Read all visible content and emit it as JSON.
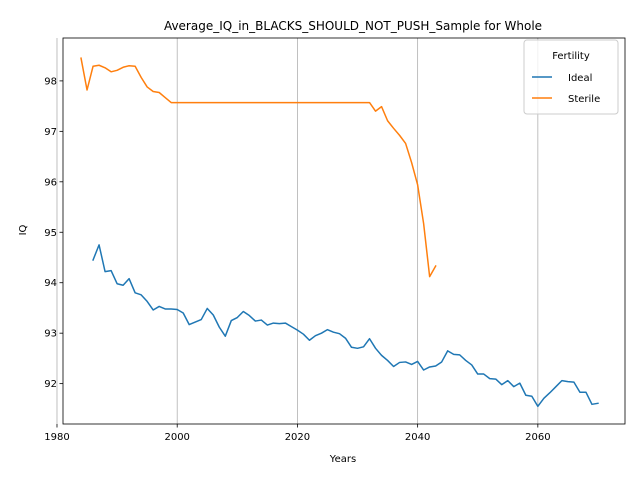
{
  "chart_data": {
    "type": "line",
    "title": "Average_IQ_in_BLACKS_SHOULD_NOT_PUSH_Sample for Whole",
    "xlabel": "Years",
    "ylabel": "IQ",
    "xlim": [
      1981,
      2074.5
    ],
    "ylim": [
      91.2,
      98.85
    ],
    "xticks": [
      1980,
      2000,
      2020,
      2040,
      2060
    ],
    "yticks": [
      92,
      93,
      94,
      95,
      96,
      97,
      98
    ],
    "grid": "x-only",
    "legend": {
      "title": "Fertility",
      "position": "top-right"
    },
    "series": [
      {
        "name": "Ideal",
        "color": "#1f77b4",
        "x": [
          1986,
          1987,
          1988,
          1989,
          1990,
          1991,
          1992,
          1993,
          1994,
          1995,
          1996,
          1997,
          1998,
          1999,
          2000,
          2001,
          2002,
          2003,
          2004,
          2005,
          2006,
          2007,
          2008,
          2009,
          2010,
          2011,
          2012,
          2013,
          2014,
          2015,
          2016,
          2017,
          2018,
          2019,
          2020,
          2021,
          2022,
          2023,
          2024,
          2025,
          2026,
          2027,
          2028,
          2029,
          2030,
          2031,
          2032,
          2033,
          2034,
          2035,
          2036,
          2037,
          2038,
          2039,
          2040,
          2041,
          2042,
          2043,
          2044,
          2045,
          2046,
          2047,
          2048,
          2049,
          2050,
          2051,
          2052,
          2053,
          2054,
          2055,
          2056,
          2057,
          2058,
          2059,
          2060,
          2061,
          2062,
          2063,
          2064,
          2065,
          2066,
          2067,
          2068,
          2069,
          2070
        ],
        "values": [
          94.45,
          94.75,
          94.22,
          94.24,
          93.98,
          93.95,
          94.08,
          93.8,
          93.76,
          93.63,
          93.46,
          93.53,
          93.48,
          93.48,
          93.47,
          93.4,
          93.17,
          93.22,
          93.27,
          93.49,
          93.36,
          93.12,
          92.94,
          93.25,
          93.31,
          93.43,
          93.35,
          93.24,
          93.26,
          93.16,
          93.2,
          93.19,
          93.2,
          93.13,
          93.06,
          92.98,
          92.86,
          92.95,
          93.0,
          93.07,
          93.02,
          92.99,
          92.9,
          92.72,
          92.7,
          92.73,
          92.89,
          92.7,
          92.56,
          92.46,
          92.34,
          92.42,
          92.43,
          92.38,
          92.44,
          92.27,
          92.33,
          92.35,
          92.43,
          92.65,
          92.58,
          92.57,
          92.46,
          92.37,
          92.19,
          92.19,
          92.1,
          92.09,
          91.98,
          92.06,
          91.94,
          92.01,
          91.77,
          91.75,
          91.55,
          91.71,
          91.82,
          91.94,
          92.06,
          92.04,
          92.03,
          91.83,
          91.83,
          91.59,
          91.61
        ]
      },
      {
        "name": "Sterile",
        "color": "#ff7f0e",
        "x": [
          1984,
          1985,
          1986,
          1987,
          1988,
          1989,
          1990,
          1991,
          1992,
          1993,
          1994,
          1995,
          1996,
          1997,
          1998,
          1999,
          2000,
          2005,
          2010,
          2015,
          2020,
          2025,
          2030,
          2032,
          2033,
          2034,
          2035,
          2036,
          2037,
          2038,
          2039,
          2040,
          2041,
          2042,
          2043
        ],
        "values": [
          98.45,
          97.82,
          98.29,
          98.31,
          98.26,
          98.18,
          98.21,
          98.27,
          98.3,
          98.29,
          98.07,
          97.88,
          97.79,
          97.77,
          97.67,
          97.57,
          97.57,
          97.57,
          97.57,
          97.57,
          97.57,
          97.57,
          97.57,
          97.57,
          97.4,
          97.49,
          97.21,
          97.06,
          96.92,
          96.76,
          96.38,
          95.94,
          95.17,
          94.12,
          94.33
        ]
      }
    ]
  }
}
